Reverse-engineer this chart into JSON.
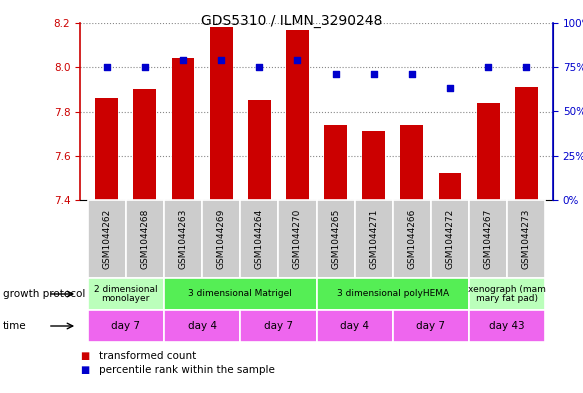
{
  "title": "GDS5310 / ILMN_3290248",
  "samples": [
    "GSM1044262",
    "GSM1044268",
    "GSM1044263",
    "GSM1044269",
    "GSM1044264",
    "GSM1044270",
    "GSM1044265",
    "GSM1044271",
    "GSM1044266",
    "GSM1044272",
    "GSM1044267",
    "GSM1044273"
  ],
  "bar_values": [
    7.86,
    7.9,
    8.04,
    8.18,
    7.85,
    8.17,
    7.74,
    7.71,
    7.74,
    7.52,
    7.84,
    7.91
  ],
  "dot_values": [
    75,
    75,
    79,
    79,
    75,
    79,
    71,
    71,
    71,
    63,
    75,
    75
  ],
  "ylim_left": [
    7.4,
    8.2
  ],
  "ylim_right": [
    0,
    100
  ],
  "yticks_left": [
    7.4,
    7.6,
    7.8,
    8.0,
    8.2
  ],
  "yticks_right": [
    0,
    25,
    50,
    75,
    100
  ],
  "bar_color": "#cc0000",
  "dot_color": "#0000cc",
  "bar_bottom": 7.4,
  "growth_protocol_groups": [
    {
      "label": "2 dimensional\nmonolayer",
      "start": 0,
      "end": 2,
      "color": "#bbffbb"
    },
    {
      "label": "3 dimensional Matrigel",
      "start": 2,
      "end": 6,
      "color": "#55ee55"
    },
    {
      "label": "3 dimensional polyHEMA",
      "start": 6,
      "end": 10,
      "color": "#55ee55"
    },
    {
      "label": "xenograph (mam\nmary fat pad)",
      "start": 10,
      "end": 12,
      "color": "#bbffbb"
    }
  ],
  "time_groups": [
    {
      "label": "day 7",
      "start": 0,
      "end": 2,
      "color": "#ee66ee"
    },
    {
      "label": "day 4",
      "start": 2,
      "end": 4,
      "color": "#ee66ee"
    },
    {
      "label": "day 7",
      "start": 4,
      "end": 6,
      "color": "#ee66ee"
    },
    {
      "label": "day 4",
      "start": 6,
      "end": 8,
      "color": "#ee66ee"
    },
    {
      "label": "day 7",
      "start": 8,
      "end": 10,
      "color": "#ee66ee"
    },
    {
      "label": "day 43",
      "start": 10,
      "end": 12,
      "color": "#ee66ee"
    }
  ],
  "growth_protocol_label": "growth protocol",
  "time_label": "time",
  "legend_bar_label": "transformed count",
  "legend_dot_label": "percentile rank within the sample",
  "dotted_line_color": "#888888",
  "axis_label_color_left": "#cc0000",
  "axis_label_color_right": "#0000cc",
  "sample_bg_color": "#cccccc",
  "n_samples": 12
}
